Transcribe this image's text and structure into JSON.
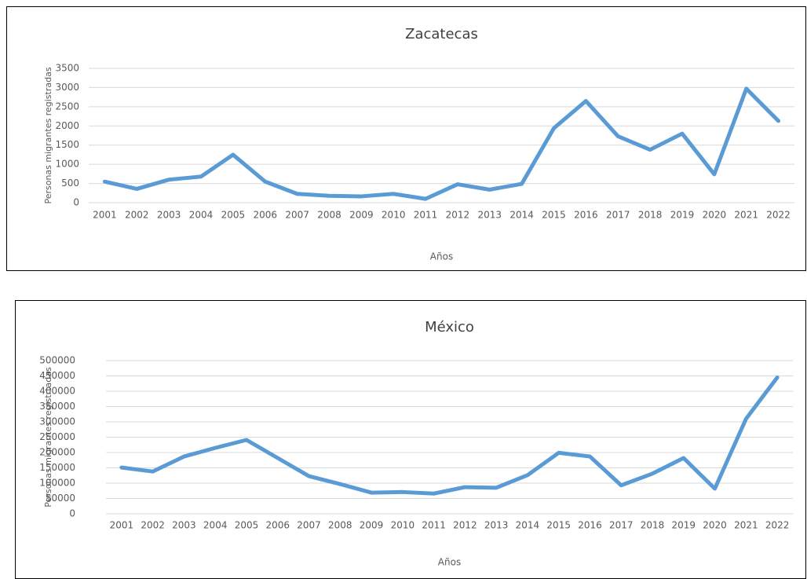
{
  "chart_data": [
    {
      "type": "line",
      "title": "Zacatecas",
      "x_label": "Años",
      "y_label": "Personas migrantes registradas",
      "categories": [
        "2001",
        "2002",
        "2003",
        "2004",
        "2005",
        "2006",
        "2007",
        "2008",
        "2009",
        "2010",
        "2011",
        "2012",
        "2013",
        "2014",
        "2015",
        "2016",
        "2017",
        "2018",
        "2019",
        "2020",
        "2021",
        "2022"
      ],
      "series": [
        {
          "color": "#5b9bd5",
          "values": [
            550,
            360,
            600,
            680,
            1250,
            550,
            230,
            180,
            165,
            230,
            100,
            480,
            340,
            490,
            1940,
            2650,
            1730,
            1380,
            1800,
            740,
            2970,
            2130
          ]
        }
      ],
      "ylim": [
        0,
        3500
      ],
      "yticks": [
        0,
        500,
        1000,
        1500,
        2000,
        2500,
        3000,
        3500
      ],
      "grid": true
    },
    {
      "type": "line",
      "title": "México",
      "x_label": "Años",
      "y_label": "Personas migrantes registrtadas",
      "categories": [
        "2001",
        "2002",
        "2003",
        "2004",
        "2005",
        "2006",
        "2007",
        "2008",
        "2009",
        "2010",
        "2011",
        "2012",
        "2013",
        "2014",
        "2015",
        "2016",
        "2017",
        "2018",
        "2019",
        "2020",
        "2021",
        "2022"
      ],
      "series": [
        {
          "color": "#5b9bd5",
          "values": [
            151000,
            138000,
            187000,
            215000,
            241000,
            182000,
            123000,
            97000,
            69000,
            71000,
            66000,
            87000,
            85000,
            126000,
            199000,
            187000,
            93000,
            131000,
            182000,
            82000,
            310000,
            445000
          ]
        }
      ],
      "ylim": [
        0,
        500000
      ],
      "yticks": [
        0,
        50000,
        100000,
        150000,
        200000,
        250000,
        300000,
        350000,
        400000,
        450000,
        500000
      ],
      "grid": true
    }
  ]
}
